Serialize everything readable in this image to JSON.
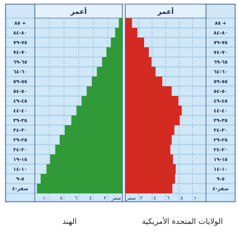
{
  "chart_data": [
    {
      "type": "bar",
      "orientation": "horizontal",
      "country": "الهند",
      "header": "أعمر",
      "color": "#2f9a37",
      "categories": [
        "صفر-٤",
        "٥-٩",
        "١٠-١٤",
        "١٥-١٩",
        "٢٠-٢٤",
        "٢٥-٢٩",
        "٣٠-٣٤",
        "٣٥-٣٩",
        "٤٠-٤٤",
        "٤٥-٤٩",
        "٥٠-٥٤",
        "٥٥-٥٩",
        "٦٠-٦٤",
        "٦٥-٦٩",
        "٧٠-٧٤",
        "٧٥-٧٩",
        "٨٠-٨٤",
        "٨٥ +"
      ],
      "values": [
        11.7,
        11.2,
        10.4,
        9.9,
        9.2,
        8.6,
        7.9,
        7.0,
        6.3,
        5.6,
        4.9,
        4.2,
        3.5,
        2.8,
        2.2,
        1.6,
        1.0,
        0.5
      ],
      "ticks": [
        "صفر",
        "٢",
        "٤",
        "٦",
        "٨",
        "١٠"
      ],
      "xlim": [
        0,
        12
      ]
    },
    {
      "type": "bar",
      "orientation": "horizontal",
      "country": "الولايات المتحدة الأمريكية",
      "header": "أعمر",
      "color": "#d32a22",
      "categories": [
        "صفر-٤",
        "٥-٩",
        "١٠-١٤",
        "١٥-١٩",
        "٢٠-٢٤",
        "٢٥-٢٩",
        "٣٠-٣٤",
        "٣٥-٣٩",
        "٤٠-٤٤",
        "٤٥-٤٩",
        "٥٠-٥٤",
        "٥٥-٥٩",
        "٦٠-٦٤",
        "٦٥-٦٩",
        "٧٠-٧٤",
        "٧٥-٧٩",
        "٨٠-٨٤",
        "٨٥ +"
      ],
      "values": [
        7.0,
        7.4,
        7.5,
        7.1,
        6.7,
        6.9,
        7.3,
        8.1,
        8.4,
        7.9,
        6.9,
        5.5,
        4.5,
        3.9,
        3.5,
        2.8,
        1.8,
        1.0
      ],
      "ticks": [
        "صفر",
        "٢",
        "٤",
        "٦",
        "٨",
        "١٠"
      ],
      "xlim": [
        0,
        12
      ]
    }
  ]
}
